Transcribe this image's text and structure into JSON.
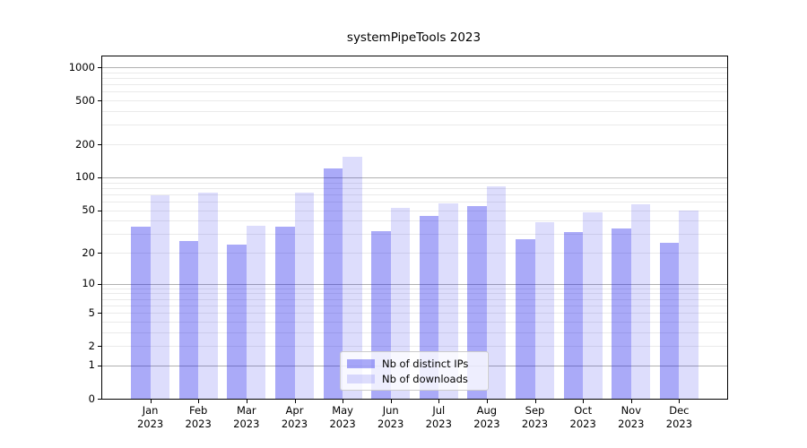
{
  "title": "systemPipeTools 2023",
  "chart_data": {
    "type": "bar",
    "title": "systemPipeTools 2023",
    "categories": [
      "Jan",
      "Feb",
      "Mar",
      "Apr",
      "May",
      "Jun",
      "Jul",
      "Aug",
      "Sep",
      "Oct",
      "Nov",
      "Dec"
    ],
    "year_label": "2023",
    "series": [
      {
        "name": "Nb of distinct IPs",
        "color": "rgba(20,20,235,0.36)",
        "values": [
          35,
          26,
          24,
          35,
          121,
          32,
          44,
          54,
          27,
          31,
          34,
          25
        ]
      },
      {
        "name": "Nb of downloads",
        "color": "rgba(20,20,235,0.145)",
        "values": [
          68,
          72,
          36,
          72,
          153,
          52,
          58,
          82,
          39,
          48,
          57,
          50
        ]
      }
    ],
    "yscale": "log1p",
    "ylim": [
      0,
      1250
    ],
    "yticks": [
      1000,
      500,
      200,
      100,
      50,
      20,
      10,
      5,
      2,
      1,
      0
    ],
    "major_gridlines": [
      1,
      10,
      100,
      1000
    ],
    "minor_gridlines": [
      2,
      3,
      4,
      5,
      6,
      7,
      8,
      9,
      20,
      30,
      40,
      50,
      60,
      70,
      80,
      90,
      200,
      300,
      400,
      500,
      600,
      700,
      800,
      900
    ],
    "grid": true,
    "legend_position": "lower center"
  },
  "colors": {
    "ips_bar": "rgba(20,20,235,0.36)",
    "downloads_bar": "rgba(20,20,235,0.145)",
    "major_grid": "#b0b0b0",
    "minor_grid": "#eaeaea",
    "axis": "#000000",
    "background": "#ffffff"
  }
}
